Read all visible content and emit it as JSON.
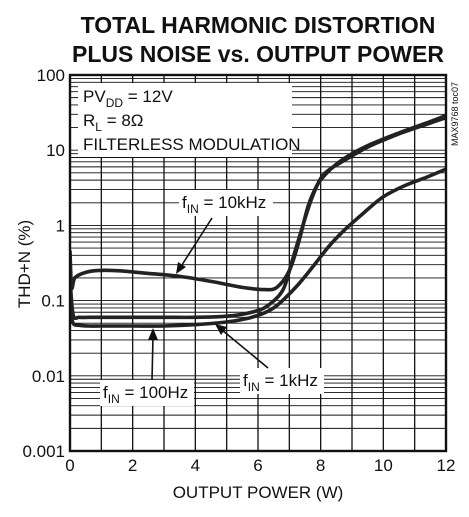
{
  "chart_data": {
    "type": "line",
    "title_line1": "TOTAL HARMONIC DISTORTION",
    "title_line2": "PLUS NOISE vs. OUTPUT POWER",
    "xlabel": "OUTPUT POWER (W)",
    "ylabel": "THD+N (%)",
    "side_label": "MAX9768 toc07",
    "conditions": [
      {
        "main": "PV",
        "sub": "DD",
        "rest": " = 12V"
      },
      {
        "main": "R",
        "sub": "L",
        "rest": " = 8Ω"
      },
      {
        "main": "FILTERLESS MODULATION",
        "sub": "",
        "rest": ""
      }
    ],
    "x_scale": "linear",
    "y_scale": "log",
    "xlim": [
      0,
      12
    ],
    "ylim": [
      0.001,
      100
    ],
    "x_ticks": [
      0,
      2,
      4,
      6,
      8,
      10,
      12
    ],
    "x_tick_labels": [
      "0",
      "2",
      "4",
      "6",
      "8",
      "10",
      "12"
    ],
    "y_ticks": [
      0.001,
      0.01,
      0.1,
      1,
      10,
      100
    ],
    "y_tick_labels": [
      "0.001",
      "0.01",
      "0.1",
      "1",
      "10",
      "100"
    ],
    "grid": true,
    "series": [
      {
        "name": "fIN = 10kHz",
        "label_main": "f",
        "label_sub": "IN",
        "label_rest": " = 10kHz",
        "x": [
          0.0,
          0.05,
          0.15,
          0.4,
          0.8,
          1.5,
          2.5,
          3.5,
          4.5,
          5.5,
          6.2,
          6.6,
          7.0,
          7.3,
          7.6,
          7.9,
          8.3,
          8.8,
          9.5,
          10.5,
          11.5,
          12.0
        ],
        "y": [
          0.45,
          0.15,
          0.2,
          0.23,
          0.25,
          0.25,
          0.23,
          0.21,
          0.18,
          0.15,
          0.14,
          0.15,
          0.25,
          0.6,
          1.8,
          3.5,
          5.5,
          8.0,
          11.5,
          17.0,
          24.0,
          29.0
        ]
      },
      {
        "name": "fIN = 1kHz",
        "label_main": "f",
        "label_sub": "IN",
        "label_rest": " = 1kHz",
        "x": [
          0.0,
          0.1,
          0.3,
          0.6,
          1.0,
          2.0,
          3.0,
          4.0,
          5.0,
          5.8,
          6.3,
          6.8,
          7.1,
          7.4,
          7.7,
          8.0,
          8.3,
          8.8,
          9.5,
          10.5,
          11.5,
          12.0
        ],
        "y": [
          0.2,
          0.065,
          0.06,
          0.06,
          0.06,
          0.06,
          0.06,
          0.06,
          0.062,
          0.07,
          0.085,
          0.14,
          0.35,
          0.9,
          2.2,
          4.2,
          5.6,
          7.5,
          11.0,
          16.5,
          23.0,
          27.0
        ]
      },
      {
        "name": "fIN = 100Hz",
        "label_main": "f",
        "label_sub": "IN",
        "label_rest": " = 100Hz",
        "x": [
          0.0,
          0.1,
          0.3,
          0.6,
          1.0,
          2.0,
          3.0,
          4.0,
          5.0,
          5.8,
          6.5,
          7.2,
          7.8,
          8.3,
          8.8,
          9.4,
          10.0,
          10.7,
          11.4,
          12.0
        ],
        "y": [
          0.08,
          0.05,
          0.047,
          0.046,
          0.046,
          0.046,
          0.046,
          0.048,
          0.052,
          0.06,
          0.08,
          0.15,
          0.3,
          0.55,
          0.9,
          1.5,
          2.4,
          3.4,
          4.4,
          5.6
        ]
      }
    ]
  }
}
